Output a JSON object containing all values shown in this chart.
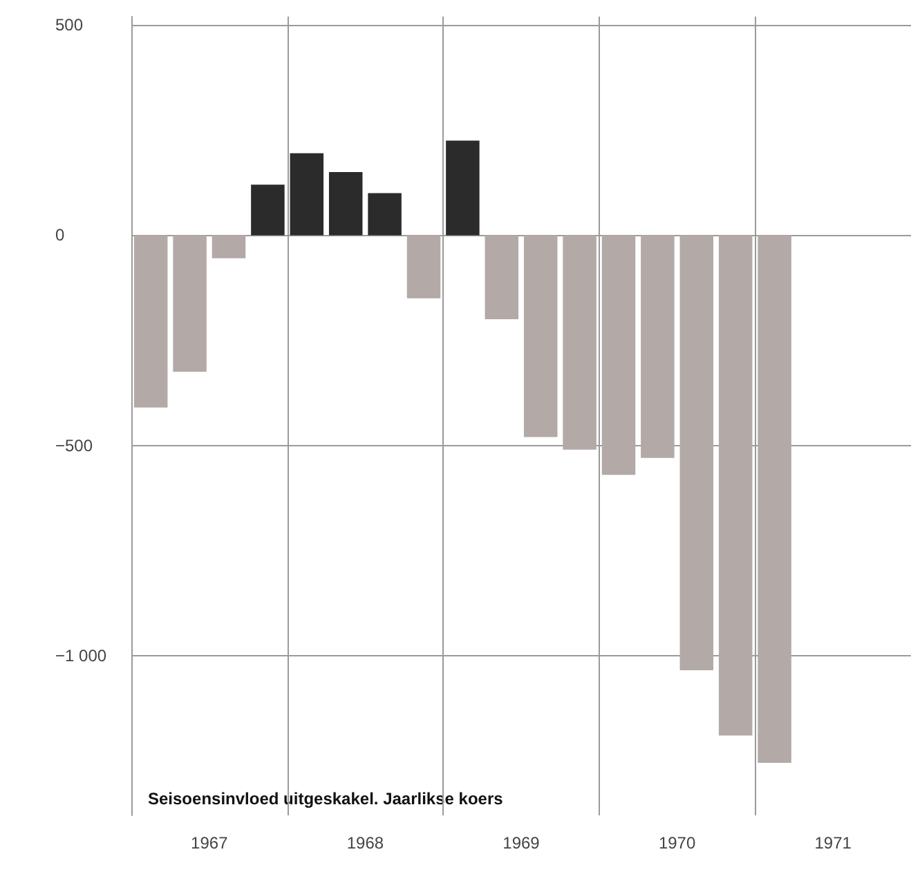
{
  "chart_data": {
    "type": "bar",
    "x": [
      1967.125,
      1967.375,
      1967.625,
      1967.875,
      1968.125,
      1968.375,
      1968.625,
      1968.875,
      1969.125,
      1969.375,
      1969.625,
      1969.875,
      1970.125,
      1970.375,
      1970.625,
      1970.875,
      1971.125
    ],
    "values": [
      -410,
      -325,
      -55,
      120,
      195,
      150,
      100,
      -150,
      225,
      -200,
      -480,
      -510,
      -570,
      -530,
      -1035,
      -1190,
      -1255
    ],
    "colors": [
      "#b3a9a7",
      "#b3a9a7",
      "#b3a9a7",
      "#2b2b2b",
      "#2b2b2b",
      "#2b2b2b",
      "#2b2b2b",
      "#b3a9a7",
      "#2b2b2b",
      "#b3a9a7",
      "#b3a9a7",
      "#b3a9a7",
      "#b3a9a7",
      "#b3a9a7",
      "#b3a9a7",
      "#b3a9a7",
      "#b3a9a7"
    ],
    "xlim": [
      1967,
      1972
    ],
    "xticks": [
      {
        "value": 1967,
        "label": null
      },
      {
        "value": 1967.5,
        "label": "1967"
      },
      {
        "value": 1968,
        "label": null
      },
      {
        "value": 1968.5,
        "label": "1968"
      },
      {
        "value": 1969,
        "label": null
      },
      {
        "value": 1969.5,
        "label": "1969"
      },
      {
        "value": 1970,
        "label": null
      },
      {
        "value": 1970.5,
        "label": "1970"
      },
      {
        "value": 1971,
        "label": null
      },
      {
        "value": 1971.5,
        "label": "1971"
      }
    ],
    "ylim": [
      -1380,
      520
    ],
    "yticks": [
      500,
      0,
      {
        "value": -500,
        "label": "−500"
      },
      {
        "value": -1000,
        "label": "−1 000"
      }
    ],
    "grid": true,
    "annotations": [
      "Seisoensinvloed uitgeskakel. Jaarlikse koers"
    ]
  }
}
